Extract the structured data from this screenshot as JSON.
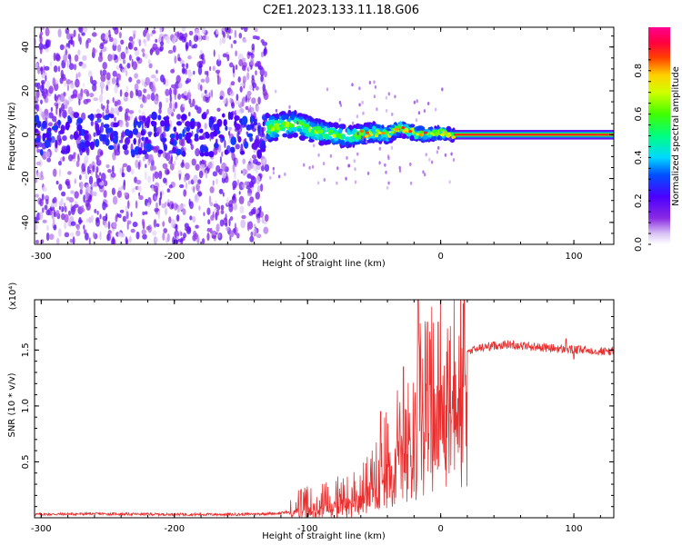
{
  "title": "C2E1.2023.133.11.18.G06",
  "chart_data": [
    {
      "type": "heatmap",
      "xlabel": "Height of straight line (km)",
      "ylabel": "Frequency (Hz)",
      "xlim": [
        -305,
        130
      ],
      "ylim": [
        -50,
        49
      ],
      "xticks": [
        -300,
        -200,
        -100,
        0,
        100
      ],
      "xtick_labels": [
        "-300",
        "-200",
        "-100",
        "0",
        "100"
      ],
      "yticks": [
        -40,
        -20,
        0,
        20,
        40
      ],
      "ytick_labels": [
        "-40",
        "-20",
        "0",
        "20",
        "40"
      ],
      "colorbar": {
        "label": "Normalized spectral amplitude",
        "range": [
          0.0,
          1.0
        ],
        "ticks": [
          0.0,
          0.2,
          0.4,
          0.6,
          0.8
        ],
        "tick_labels": [
          "0.0",
          "0.2",
          "0.4",
          "0.6",
          "0.8"
        ]
      },
      "regions": [
        {
          "x_from": -305,
          "x_to": -130,
          "freq_center": 0,
          "freq_spread": 49,
          "amplitude": 0.25,
          "description_level": "noise"
        },
        {
          "x_from": -130,
          "x_to": 10,
          "freq_center": 2,
          "freq_spread": 6,
          "amplitude": 0.45
        },
        {
          "x_from": 10,
          "x_to": 130,
          "freq_center": 0,
          "freq_spread": 1.5,
          "amplitude": 0.9
        }
      ],
      "signal_track": [
        {
          "x": -130,
          "f": 3
        },
        {
          "x": -110,
          "f": 5
        },
        {
          "x": -90,
          "f": 1
        },
        {
          "x": -70,
          "f": -1
        },
        {
          "x": -50,
          "f": 1
        },
        {
          "x": -40,
          "f": 0
        },
        {
          "x": -30,
          "f": 3
        },
        {
          "x": -20,
          "f": 1
        },
        {
          "x": -10,
          "f": 0
        },
        {
          "x": 0,
          "f": 1
        },
        {
          "x": 10,
          "f": 0
        },
        {
          "x": 130,
          "f": 0
        }
      ]
    },
    {
      "type": "line",
      "xlabel": "Height of straight line (km)",
      "ylabel": "SNR (10 * v/v)",
      "y_multiplier": "(x10⁴)",
      "xlim": [
        -305,
        130
      ],
      "ylim": [
        0,
        1.95
      ],
      "xticks": [
        -300,
        -200,
        -100,
        0,
        100
      ],
      "xtick_labels": [
        "-300",
        "-200",
        "-100",
        "0",
        "100"
      ],
      "yticks": [
        0.5,
        1.0,
        1.5
      ],
      "ytick_labels": [
        "0.5",
        "1.0",
        "1.5"
      ],
      "series": [
        {
          "name": "SNR",
          "color": "#e83030",
          "points": [
            [
              -305,
              0.03
            ],
            [
              -260,
              0.035
            ],
            [
              -200,
              0.03
            ],
            [
              -150,
              0.03
            ],
            [
              -120,
              0.04
            ],
            [
              -110,
              0.07
            ],
            [
              -100,
              0.1
            ],
            [
              -90,
              0.12
            ],
            [
              -80,
              0.15
            ],
            [
              -70,
              0.18
            ],
            [
              -60,
              0.22
            ],
            [
              -55,
              0.3
            ],
            [
              -50,
              0.35
            ],
            [
              -45,
              0.45
            ],
            [
              -40,
              0.55
            ],
            [
              -35,
              0.62
            ],
            [
              -30,
              0.75
            ],
            [
              -25,
              0.85
            ],
            [
              -20,
              0.95
            ],
            [
              -15,
              1.1
            ],
            [
              -10,
              1.15
            ],
            [
              -5,
              1.2
            ],
            [
              0,
              1.25
            ],
            [
              5,
              1.35
            ],
            [
              10,
              1.4
            ],
            [
              15,
              1.45
            ],
            [
              20,
              1.48
            ],
            [
              25,
              1.5
            ],
            [
              30,
              1.52
            ],
            [
              40,
              1.54
            ],
            [
              50,
              1.55
            ],
            [
              60,
              1.54
            ],
            [
              70,
              1.53
            ],
            [
              80,
              1.52
            ],
            [
              90,
              1.51
            ],
            [
              100,
              1.5
            ],
            [
              110,
              1.5
            ],
            [
              120,
              1.49
            ],
            [
              130,
              1.49
            ]
          ],
          "peaks": [
            {
              "x": -17,
              "y": 1.95
            },
            {
              "x": -10,
              "y": 1.75
            },
            {
              "x": -2,
              "y": 1.75
            },
            {
              "x": -28,
              "y": 1.35
            },
            {
              "x": -45,
              "y": 0.95
            },
            {
              "x": 94,
              "y": 1.6
            },
            {
              "x": 100,
              "y": 1.42
            }
          ]
        }
      ]
    }
  ]
}
